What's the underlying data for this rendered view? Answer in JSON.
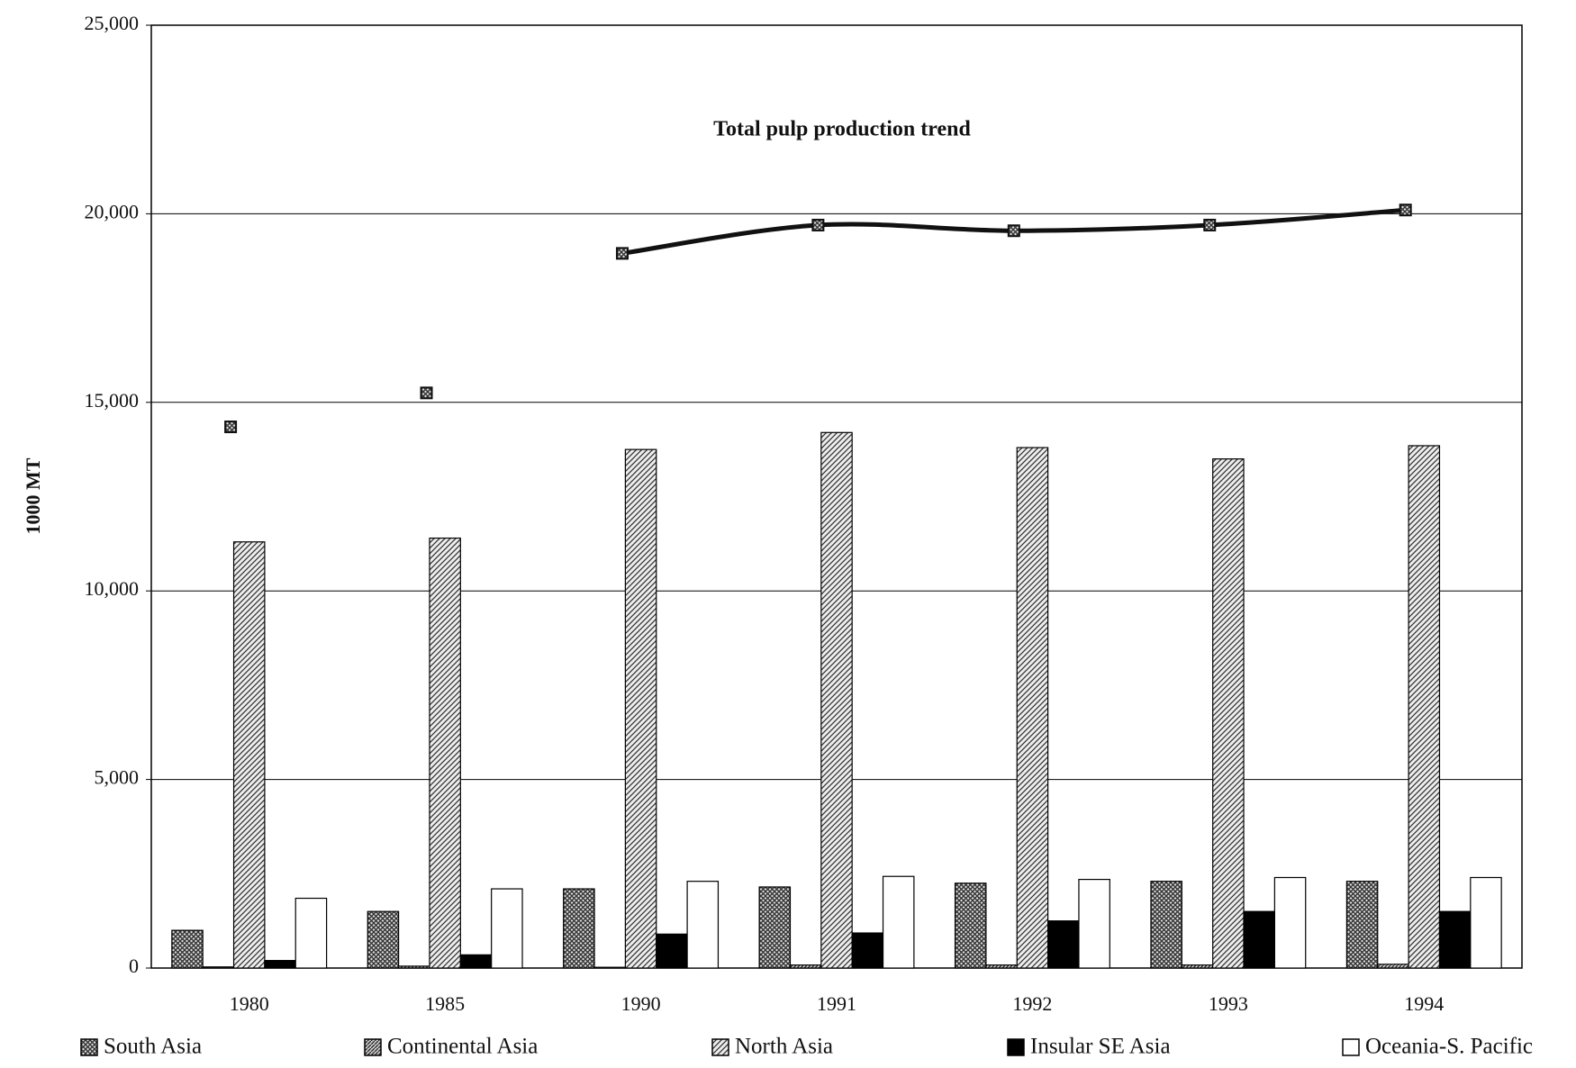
{
  "chart_data": {
    "type": "bar",
    "ylabel": "1000 MT",
    "categories": [
      "1980",
      "1985",
      "1990",
      "1991",
      "1992",
      "1993",
      "1994"
    ],
    "series": [
      {
        "name": "South Asia",
        "color": "#555555",
        "pattern": "crosshatch",
        "values": [
          1000,
          1500,
          2100,
          2150,
          2250,
          2300,
          2300
        ]
      },
      {
        "name": "Continental Asia",
        "color": "#666666",
        "pattern": "dense-diagonal",
        "values": [
          30,
          50,
          20,
          80,
          80,
          80,
          100
        ]
      },
      {
        "name": "North Asia",
        "color": "#555555",
        "pattern": "diagonal",
        "values": [
          11300,
          11400,
          13750,
          14200,
          13800,
          13500,
          13850
        ]
      },
      {
        "name": "Insular SE Asia",
        "color": "#000000",
        "pattern": "solid",
        "values": [
          200,
          350,
          900,
          930,
          1250,
          1500,
          1500
        ]
      },
      {
        "name": "Oceania-S. Pacific",
        "color": "#ffffff",
        "pattern": "solid",
        "values": [
          1850,
          2100,
          2300,
          2430,
          2350,
          2400,
          2400
        ]
      }
    ],
    "trend": {
      "label": "Total pulp production trend",
      "color": "#111111",
      "values": [
        14350,
        15250,
        18950,
        19700,
        19550,
        19700,
        20100
      ]
    },
    "ylim": [
      0,
      25000
    ],
    "yticks": [
      0,
      {
        "value": 5000,
        "label": "5,000"
      },
      {
        "value": 10000,
        "label": "10,000"
      },
      {
        "value": 15000,
        "label": "15,000"
      },
      {
        "value": 20000,
        "label": "20,000"
      },
      {
        "value": 25000,
        "label": "25,000"
      }
    ],
    "grid": true
  }
}
